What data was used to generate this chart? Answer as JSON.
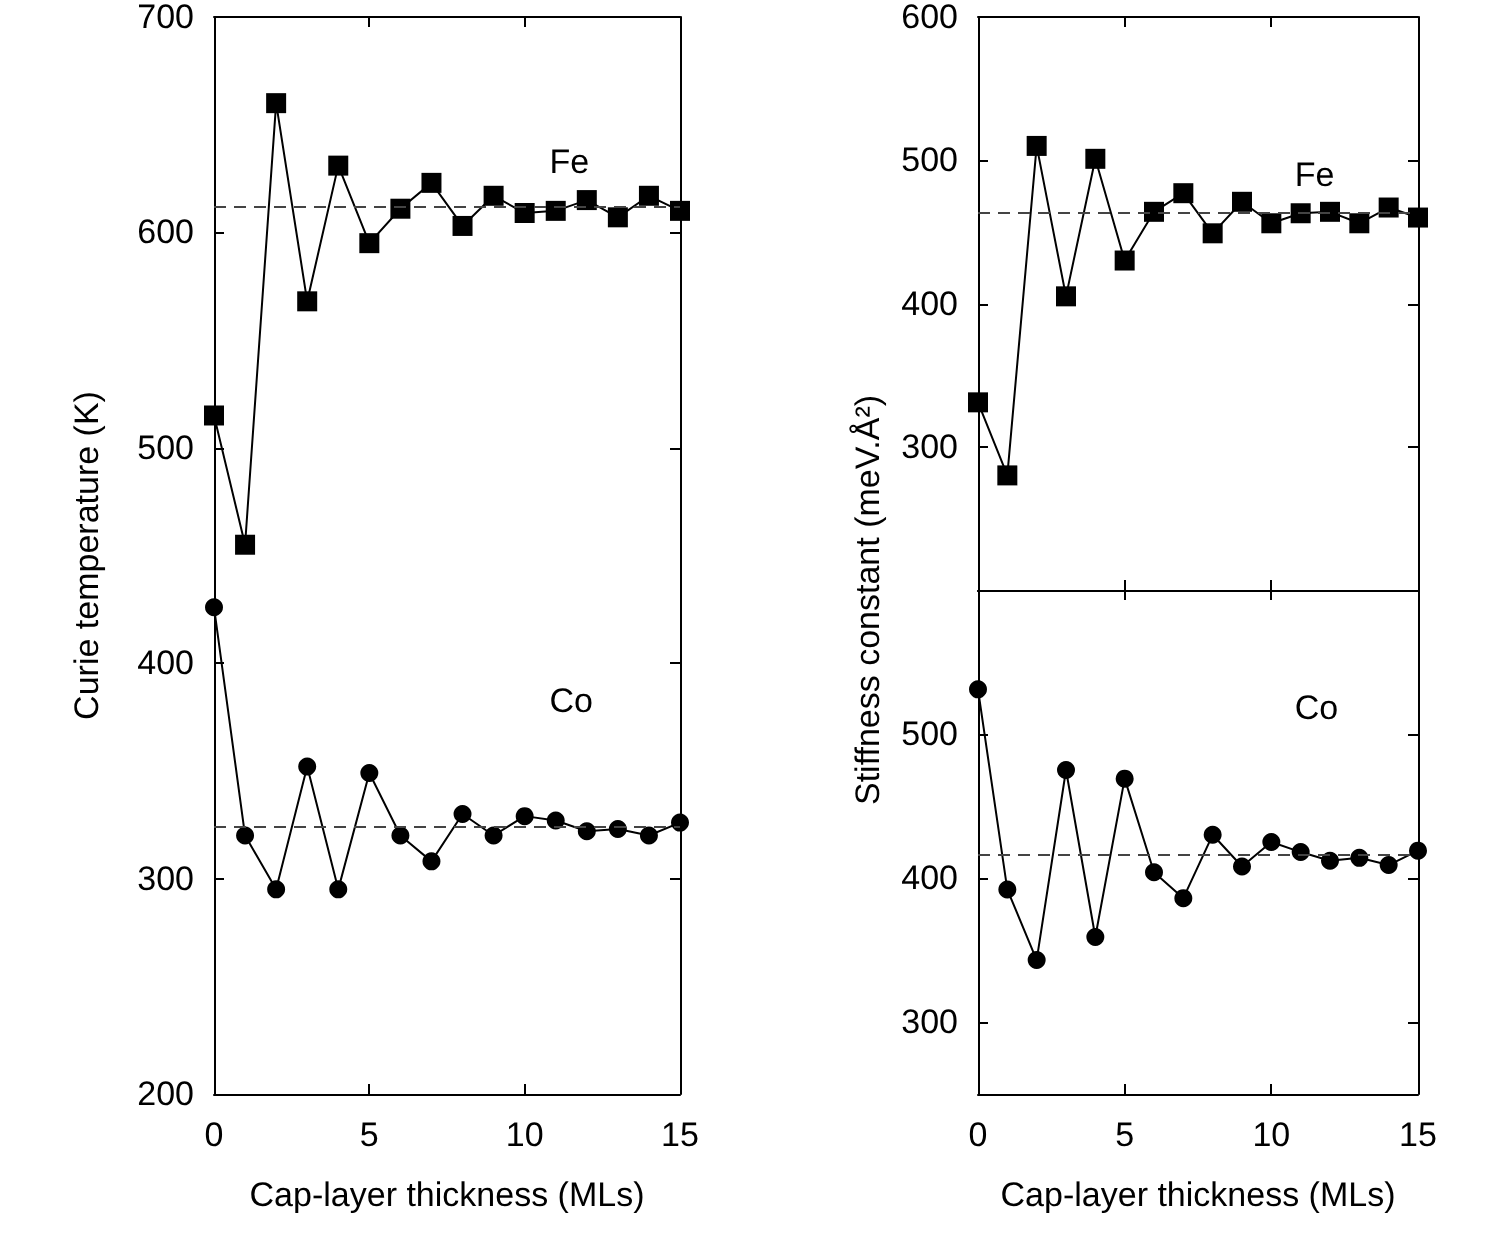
{
  "chart_data": [
    {
      "type": "line",
      "xlabel": "Cap-layer thickness (MLs)",
      "ylabel": "Curie temperature (K)",
      "x": [
        0,
        1,
        2,
        3,
        4,
        5,
        6,
        7,
        8,
        9,
        10,
        11,
        12,
        13,
        14,
        15
      ],
      "xlim": [
        0,
        15
      ],
      "xticks": [
        0,
        5,
        10,
        15
      ],
      "ylim": [
        200,
        700
      ],
      "yticks": [
        200,
        300,
        400,
        500,
        600,
        700
      ],
      "grid": false,
      "legend": "right",
      "line_style": "solid",
      "series": [
        {
          "name": "Fe",
          "color": "#000000",
          "marker": "square",
          "values": [
            515,
            455,
            660,
            568,
            631,
            595,
            611,
            623,
            603,
            617,
            609,
            610,
            615,
            607,
            617,
            610
          ]
        },
        {
          "name": "Co",
          "color": "#000000",
          "marker": "circle",
          "values": [
            426,
            320,
            295,
            352,
            295,
            349,
            320,
            308,
            330,
            320,
            329,
            327,
            322,
            323,
            320,
            326
          ]
        }
      ],
      "ref_lines": [
        {
          "axis": "y",
          "value": 612,
          "line_style": "dashed",
          "color": "#444444"
        },
        {
          "axis": "y",
          "value": 324,
          "line_style": "dashed",
          "color": "#444444"
        }
      ]
    },
    {
      "type": "line",
      "ylabel": "Stiffness constant (meV.Å²)",
      "x": [
        0,
        1,
        2,
        3,
        4,
        5,
        6,
        7,
        8,
        9,
        10,
        11,
        12,
        13,
        14,
        15
      ],
      "xlim": [
        0,
        15
      ],
      "xticks": [
        0,
        5,
        10,
        15
      ],
      "ylim": [
        200,
        600
      ],
      "yticks": [
        300,
        400,
        500,
        600
      ],
      "tick_labels": "y",
      "grid": false,
      "legend": "top right",
      "line_style": "solid",
      "series": [
        {
          "name": "Fe",
          "color": "#000000",
          "marker": "square",
          "values": [
            331,
            280,
            510,
            405,
            501,
            430,
            464,
            477,
            449,
            471,
            456,
            463,
            464,
            456,
            467,
            460
          ]
        }
      ],
      "ref_lines": [
        {
          "axis": "y",
          "value": 463,
          "line_style": "dashed",
          "color": "#444444"
        }
      ]
    },
    {
      "type": "line",
      "xlabel": "Cap-layer thickness (MLs)",
      "x": [
        0,
        1,
        2,
        3,
        4,
        5,
        6,
        7,
        8,
        9,
        10,
        11,
        12,
        13,
        14,
        15
      ],
      "xlim": [
        0,
        15
      ],
      "xticks": [
        0,
        5,
        10,
        15
      ],
      "ylim": [
        250,
        600
      ],
      "yticks": [
        300,
        400,
        500
      ],
      "grid": false,
      "legend": "top right",
      "line_style": "solid",
      "series": [
        {
          "name": "Co",
          "color": "#000000",
          "marker": "circle",
          "values": [
            531,
            392,
            343,
            475,
            359,
            469,
            404,
            386,
            430,
            408,
            425,
            418,
            412,
            414,
            409,
            419
          ]
        }
      ],
      "ref_lines": [
        {
          "axis": "y",
          "value": 416,
          "line_style": "dashed",
          "color": "#444444"
        }
      ]
    }
  ]
}
